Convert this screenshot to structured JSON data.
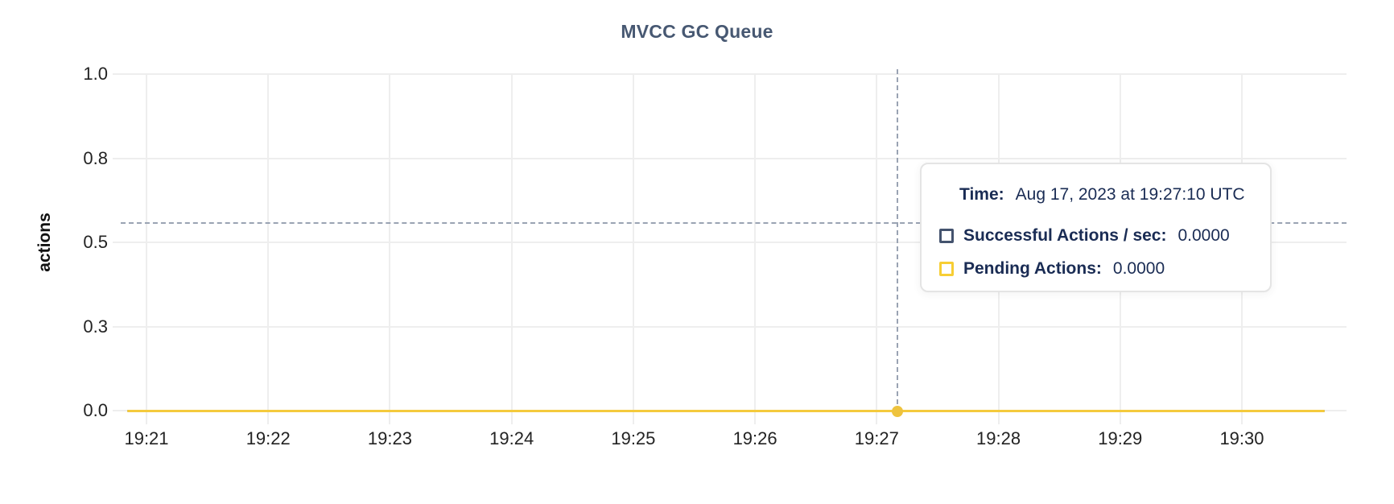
{
  "title": "MVCC GC Queue",
  "chart_data": {
    "type": "line",
    "title": "MVCC GC Queue",
    "xlabel": "",
    "ylabel": "actions",
    "ylim": [
      0,
      1
    ],
    "grid": true,
    "y_ticks": [
      {
        "value": 0.0,
        "label": "0.0"
      },
      {
        "value": 0.25,
        "label": "0.3"
      },
      {
        "value": 0.5,
        "label": "0.5"
      },
      {
        "value": 0.75,
        "label": "0.8"
      },
      {
        "value": 1.0,
        "label": "1.0"
      }
    ],
    "x_ticks": [
      "19:21",
      "19:22",
      "19:23",
      "19:24",
      "19:25",
      "19:26",
      "19:27",
      "19:28",
      "19:29",
      "19:30"
    ],
    "series": [
      {
        "name": "Successful Actions / sec",
        "color": "#475872",
        "values": [
          0,
          0,
          0,
          0,
          0,
          0,
          0,
          0,
          0,
          0
        ]
      },
      {
        "name": "Pending Actions",
        "color": "#f4ca3d",
        "values": [
          0,
          0,
          0,
          0,
          0,
          0,
          0,
          0,
          0,
          0
        ]
      }
    ],
    "hover_point": {
      "time": "19:27:10",
      "successful": 0.0,
      "pending": 0.0
    },
    "legend_position": "tooltip"
  },
  "tooltip": {
    "time_label": "Time:",
    "time_value": "Aug 17, 2023 at 19:27:10 UTC",
    "rows": [
      {
        "label": "Successful Actions / sec:",
        "value": "0.0000",
        "swatch_color": "#44536e"
      },
      {
        "label": "Pending Actions:",
        "value": "0.0000",
        "swatch_color": "#f7ce34"
      }
    ]
  },
  "colors": {
    "title": "#475872",
    "tooltip_text": "#1a2c54",
    "axis_text": "#232323",
    "gridline": "#eeeeee",
    "crosshair": "#9aa3b3",
    "series_successful": "#475872",
    "series_pending": "#f4ca3d",
    "hover_dot": "#eec33e"
  }
}
